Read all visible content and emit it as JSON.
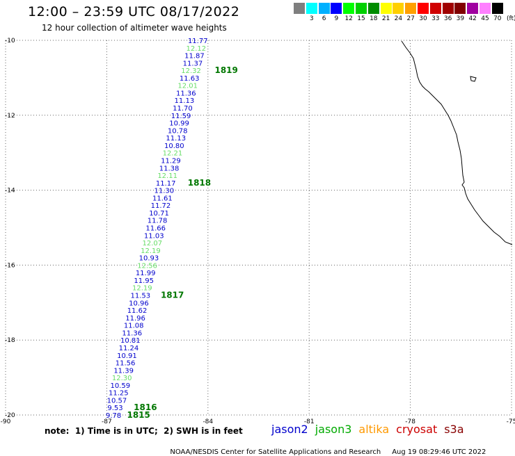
{
  "header": {
    "title": "12:00 – 23:59 UTC 08/17/2022",
    "subtitle": "12 hour collection of altimeter wave heights"
  },
  "colorbar": {
    "unit_label": "(ft)",
    "bins": [
      {
        "color": "#7f7f7f",
        "label": ""
      },
      {
        "color": "#00ffff",
        "label": "3"
      },
      {
        "color": "#00b0ff",
        "label": "6"
      },
      {
        "color": "#0000ff",
        "label": "9"
      },
      {
        "color": "#00ff00",
        "label": "12"
      },
      {
        "color": "#00d000",
        "label": "15"
      },
      {
        "color": "#008c00",
        "label": "18"
      },
      {
        "color": "#ffff00",
        "label": "21"
      },
      {
        "color": "#ffd000",
        "label": "24"
      },
      {
        "color": "#ffa000",
        "label": "27"
      },
      {
        "color": "#ff0000",
        "label": "30"
      },
      {
        "color": "#d00000",
        "label": "33"
      },
      {
        "color": "#a00000",
        "label": "36"
      },
      {
        "color": "#800000",
        "label": "39"
      },
      {
        "color": "#a000a0",
        "label": "42"
      },
      {
        "color": "#ff80ff",
        "label": "45"
      },
      {
        "color": "#000000",
        "label": "70"
      }
    ]
  },
  "map": {
    "lat_range": [
      -20,
      -10
    ],
    "lon_range": [
      -90,
      -75
    ],
    "lat_ticks": [
      "-10",
      "-12",
      "-14",
      "-16",
      "-18",
      "-20"
    ],
    "lon_ticks": [
      "-90",
      "-87",
      "-84",
      "-81",
      "-78",
      "-75"
    ],
    "grid": "dotted"
  },
  "satellite_colors": {
    "jason2": "#0000cc",
    "jason3": "#00aa00",
    "jason3_light": "#66dd66",
    "altika": "#ff9900",
    "cryosat": "#cc0000",
    "s3a": "#880000"
  },
  "chart_data": {
    "type": "scatter",
    "units": "ft",
    "observations": [
      {
        "lat": -10.0,
        "lon": -84.3,
        "swh": "11.77",
        "sat": "jason2"
      },
      {
        "lat": -10.2,
        "lon": -84.35,
        "swh": "12.12",
        "sat": "jason3_light"
      },
      {
        "lat": -10.4,
        "lon": -84.4,
        "swh": "11.87",
        "sat": "jason2"
      },
      {
        "lat": -10.6,
        "lon": -84.45,
        "swh": "11.37",
        "sat": "jason2"
      },
      {
        "lat": -10.8,
        "lon": -84.5,
        "swh": "12.32",
        "sat": "jason3_light"
      },
      {
        "lat": -11.0,
        "lon": -84.55,
        "swh": "11.63",
        "sat": "jason2"
      },
      {
        "lat": -11.2,
        "lon": -84.6,
        "swh": "12.01",
        "sat": "jason3_light"
      },
      {
        "lat": -11.4,
        "lon": -84.65,
        "swh": "11.36",
        "sat": "jason2"
      },
      {
        "lat": -11.6,
        "lon": -84.7,
        "swh": "11.13",
        "sat": "jason2"
      },
      {
        "lat": -11.8,
        "lon": -84.75,
        "swh": "11.70",
        "sat": "jason2"
      },
      {
        "lat": -12.0,
        "lon": -84.8,
        "swh": "11.59",
        "sat": "jason2"
      },
      {
        "lat": -12.2,
        "lon": -84.85,
        "swh": "10.99",
        "sat": "jason2"
      },
      {
        "lat": -12.4,
        "lon": -84.9,
        "swh": "10.78",
        "sat": "jason2"
      },
      {
        "lat": -12.6,
        "lon": -84.95,
        "swh": "11.13",
        "sat": "jason2"
      },
      {
        "lat": -12.8,
        "lon": -85.0,
        "swh": "10.80",
        "sat": "jason2"
      },
      {
        "lat": -13.0,
        "lon": -85.05,
        "swh": "12.21",
        "sat": "jason3_light"
      },
      {
        "lat": -13.2,
        "lon": -85.1,
        "swh": "11.29",
        "sat": "jason2"
      },
      {
        "lat": -13.4,
        "lon": -85.15,
        "swh": "11.38",
        "sat": "jason2"
      },
      {
        "lat": -13.6,
        "lon": -85.2,
        "swh": "12.11",
        "sat": "jason3_light"
      },
      {
        "lat": -13.8,
        "lon": -85.25,
        "swh": "11.17",
        "sat": "jason2"
      },
      {
        "lat": -14.0,
        "lon": -85.3,
        "swh": "11.30",
        "sat": "jason2"
      },
      {
        "lat": -14.2,
        "lon": -85.35,
        "swh": "11.61",
        "sat": "jason2"
      },
      {
        "lat": -14.4,
        "lon": -85.4,
        "swh": "11.72",
        "sat": "jason2"
      },
      {
        "lat": -14.6,
        "lon": -85.45,
        "swh": "10.71",
        "sat": "jason2"
      },
      {
        "lat": -14.8,
        "lon": -85.5,
        "swh": "11.78",
        "sat": "jason2"
      },
      {
        "lat": -15.0,
        "lon": -85.55,
        "swh": "11.66",
        "sat": "jason2"
      },
      {
        "lat": -15.2,
        "lon": -85.6,
        "swh": "11.03",
        "sat": "jason2"
      },
      {
        "lat": -15.4,
        "lon": -85.65,
        "swh": "12.07",
        "sat": "jason3_light"
      },
      {
        "lat": -15.6,
        "lon": -85.7,
        "swh": "12.19",
        "sat": "jason3_light"
      },
      {
        "lat": -15.8,
        "lon": -85.75,
        "swh": "10.93",
        "sat": "jason2"
      },
      {
        "lat": -16.0,
        "lon": -85.8,
        "swh": "12.56",
        "sat": "jason3_light"
      },
      {
        "lat": -16.2,
        "lon": -85.85,
        "swh": "11.99",
        "sat": "jason2"
      },
      {
        "lat": -16.4,
        "lon": -85.9,
        "swh": "11.95",
        "sat": "jason2"
      },
      {
        "lat": -16.6,
        "lon": -85.95,
        "swh": "12.19",
        "sat": "jason3_light"
      },
      {
        "lat": -16.8,
        "lon": -86.0,
        "swh": "11.53",
        "sat": "jason2"
      },
      {
        "lat": -17.0,
        "lon": -86.05,
        "swh": "10.96",
        "sat": "jason2"
      },
      {
        "lat": -17.2,
        "lon": -86.1,
        "swh": "11.62",
        "sat": "jason2"
      },
      {
        "lat": -17.4,
        "lon": -86.15,
        "swh": "11.96",
        "sat": "jason2"
      },
      {
        "lat": -17.6,
        "lon": -86.2,
        "swh": "11.08",
        "sat": "jason2"
      },
      {
        "lat": -17.8,
        "lon": -86.25,
        "swh": "11.36",
        "sat": "jason2"
      },
      {
        "lat": -18.0,
        "lon": -86.3,
        "swh": "10.81",
        "sat": "jason2"
      },
      {
        "lat": -18.2,
        "lon": -86.35,
        "swh": "11.24",
        "sat": "jason2"
      },
      {
        "lat": -18.4,
        "lon": -86.4,
        "swh": "10.91",
        "sat": "jason2"
      },
      {
        "lat": -18.6,
        "lon": -86.45,
        "swh": "11.56",
        "sat": "jason2"
      },
      {
        "lat": -18.8,
        "lon": -86.5,
        "swh": "11.39",
        "sat": "jason2"
      },
      {
        "lat": -19.0,
        "lon": -86.55,
        "swh": "12.30",
        "sat": "jason3_light"
      },
      {
        "lat": -19.2,
        "lon": -86.6,
        "swh": "10.59",
        "sat": "jason2"
      },
      {
        "lat": -19.4,
        "lon": -86.65,
        "swh": "11.25",
        "sat": "jason2"
      },
      {
        "lat": -19.6,
        "lon": -86.7,
        "swh": "10.57",
        "sat": "jason2"
      },
      {
        "lat": -19.8,
        "lon": -86.75,
        "swh": "9.53",
        "sat": "jason2"
      },
      {
        "lat": -20.0,
        "lon": -86.8,
        "swh": "9.78",
        "sat": "jason2"
      }
    ],
    "pass_times": [
      {
        "label": "1819",
        "lat": -10.8,
        "lon": -83.8
      },
      {
        "label": "1818",
        "lat": -13.8,
        "lon": -84.6
      },
      {
        "label": "1817",
        "lat": -16.8,
        "lon": -85.4
      },
      {
        "label": "1816",
        "lat": -19.8,
        "lon": -86.2
      },
      {
        "label": "1815",
        "lat": -20.0,
        "lon": -86.4
      }
    ]
  },
  "note": "note:  1) Time is in UTC;  2) SWH is in feet",
  "legend": [
    {
      "label": "jason2",
      "color_key": "jason2"
    },
    {
      "label": "jason3",
      "color_key": "jason3"
    },
    {
      "label": "altika",
      "color_key": "altika"
    },
    {
      "label": "cryosat",
      "color_key": "cryosat"
    },
    {
      "label": "s3a",
      "color_key": "s3a"
    }
  ],
  "footer": {
    "credit": "NOAA/NESDIS Center for Satellite Applications and Research",
    "timestamp": "Aug 19 08:29:46 UTC 2022"
  }
}
